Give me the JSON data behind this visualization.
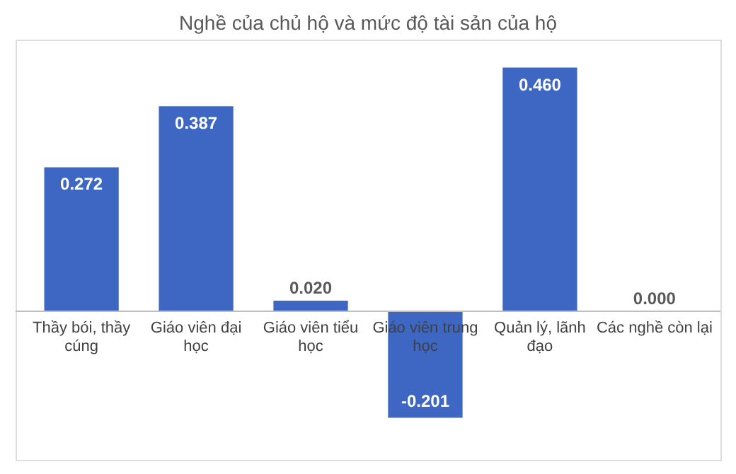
{
  "chart_data": {
    "type": "bar",
    "title": "Nghề của chủ hộ và mức độ tài sản của hộ",
    "categories": [
      "Thầy bói, thầy cúng",
      "Giáo viên đại học",
      "Giáo viên tiểu học",
      "Giáo viên trung học",
      "Quản lý, lãnh đạo",
      "Các nghề còn lại"
    ],
    "values": [
      0.272,
      0.387,
      0.02,
      -0.201,
      0.46,
      0.0
    ],
    "value_labels": [
      "0.272",
      "0.387",
      "0.020",
      "-0.201",
      "0.460",
      "0.000"
    ],
    "color": "#3d67c2"
  }
}
